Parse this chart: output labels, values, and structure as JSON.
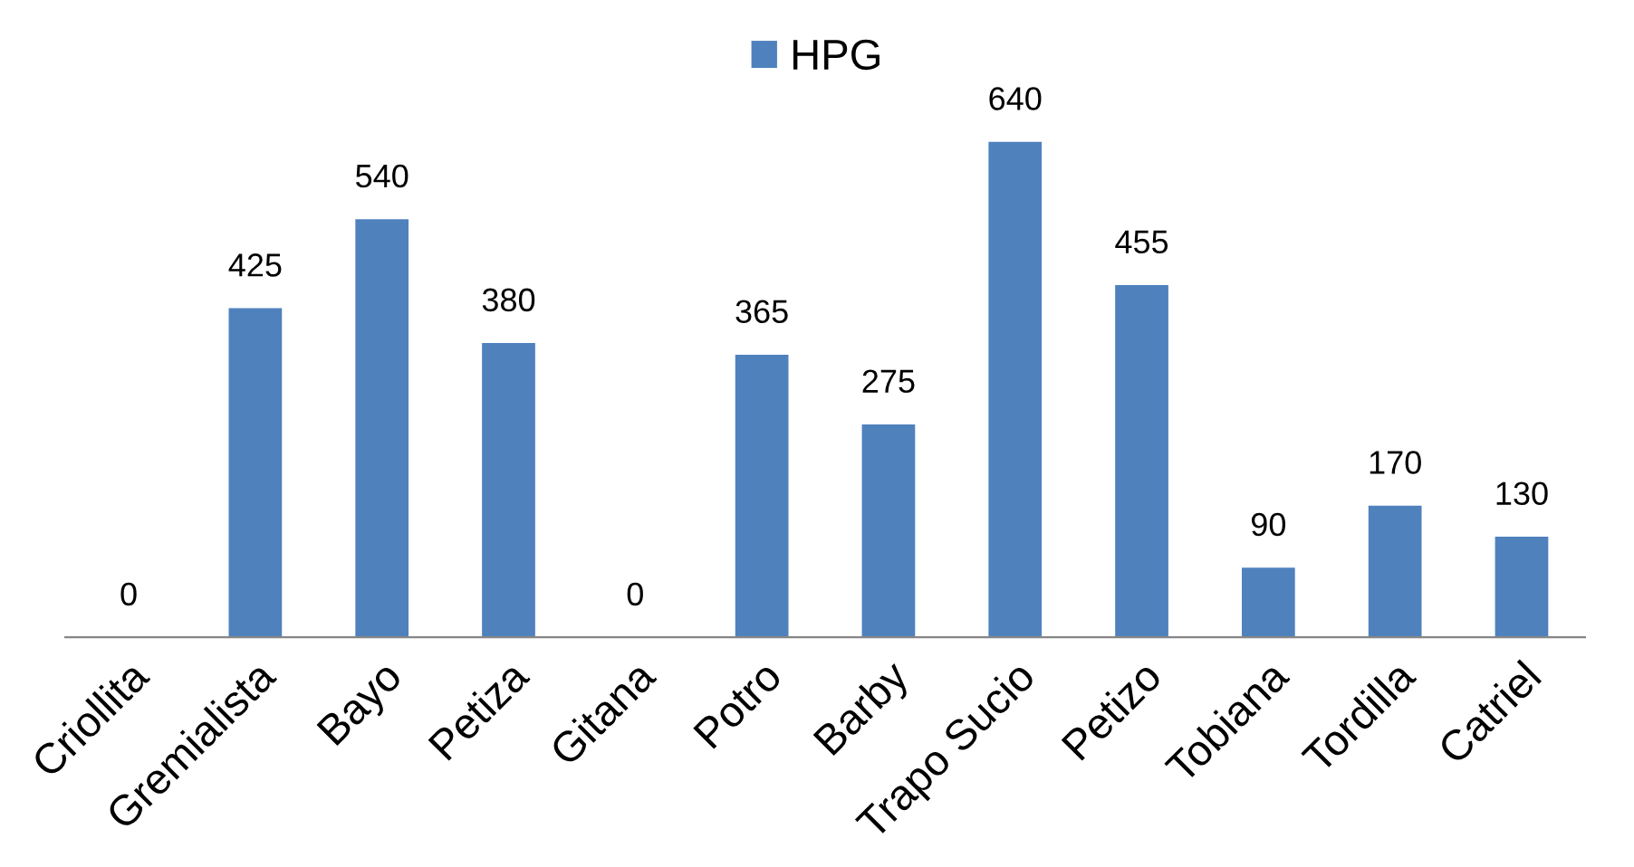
{
  "chart_data": {
    "type": "bar",
    "categories": [
      "Criollita",
      "Gremialista",
      "Bayo",
      "Petiza",
      "Gitana",
      "Potro",
      "Barby",
      "Trapo Sucio",
      "Petizo",
      "Tobiana",
      "Tordilla",
      "Catriel"
    ],
    "series": [
      {
        "name": "HPG",
        "color": "#4f81bd",
        "values": [
          0,
          425,
          540,
          380,
          0,
          365,
          275,
          640,
          455,
          90,
          170,
          130
        ]
      }
    ],
    "data_labels": true,
    "legend": "top",
    "grid": false,
    "tick_labels": "x"
  }
}
